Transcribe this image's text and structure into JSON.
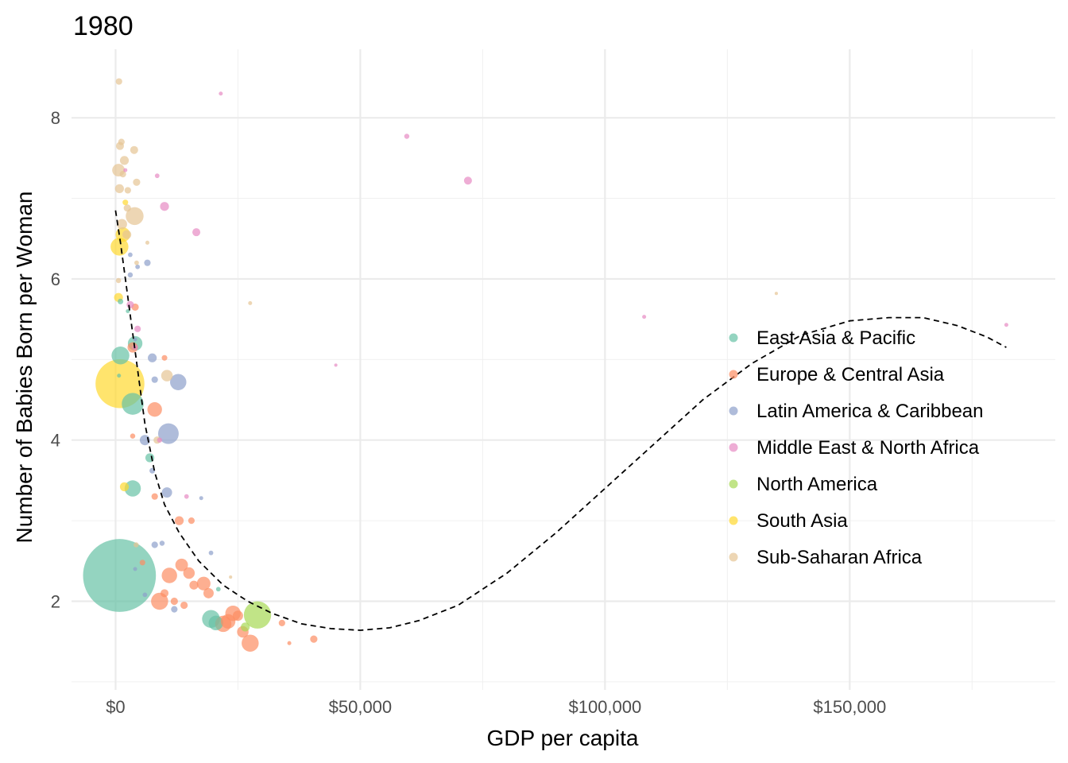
{
  "chart_data": {
    "type": "scatter",
    "title": "1980",
    "xlabel": "GDP per capita",
    "ylabel": "Number of Babies Born per Woman",
    "xlim": [
      -9000,
      192000
    ],
    "ylim": [
      0.9,
      8.85
    ],
    "x_ticks": [
      {
        "value": 0,
        "label": "$0"
      },
      {
        "value": 50000,
        "label": "$50,000"
      },
      {
        "value": 100000,
        "label": "$100,000"
      },
      {
        "value": 150000,
        "label": "$150,000"
      }
    ],
    "y_ticks": [
      {
        "value": 2,
        "label": "2"
      },
      {
        "value": 4,
        "label": "4"
      },
      {
        "value": 6,
        "label": "6"
      },
      {
        "value": 8,
        "label": "8"
      }
    ],
    "grid": true,
    "legend_position": "right",
    "point_opacity": 0.7,
    "colors": {
      "East Asia & Pacific": "#66c2a5",
      "Europe & Central Asia": "#fc8d62",
      "Latin America & Caribbean": "#8da0cb",
      "Middle East & North Africa": "#e78ac3",
      "North America": "#a6d854",
      "South Asia": "#ffd92f",
      "Sub-Saharan Africa": "#e5c494"
    },
    "trend_line": {
      "style": "dashed",
      "points": [
        [
          0,
          6.85
        ],
        [
          1000,
          6.45
        ],
        [
          2000,
          6.0
        ],
        [
          3000,
          5.55
        ],
        [
          4000,
          5.1
        ],
        [
          5000,
          4.65
        ],
        [
          6000,
          4.2
        ],
        [
          8000,
          3.6
        ],
        [
          10000,
          3.2
        ],
        [
          13000,
          2.85
        ],
        [
          17000,
          2.5
        ],
        [
          22000,
          2.2
        ],
        [
          27000,
          2.0
        ],
        [
          32000,
          1.85
        ],
        [
          38000,
          1.72
        ],
        [
          44000,
          1.66
        ],
        [
          50000,
          1.64
        ],
        [
          56000,
          1.67
        ],
        [
          62000,
          1.76
        ],
        [
          70000,
          1.95
        ],
        [
          80000,
          2.35
        ],
        [
          90000,
          2.85
        ],
        [
          100000,
          3.4
        ],
        [
          110000,
          3.95
        ],
        [
          120000,
          4.5
        ],
        [
          130000,
          4.95
        ],
        [
          140000,
          5.3
        ],
        [
          150000,
          5.48
        ],
        [
          158000,
          5.52
        ],
        [
          165000,
          5.52
        ],
        [
          172000,
          5.42
        ],
        [
          178000,
          5.28
        ],
        [
          182000,
          5.15
        ]
      ]
    },
    "series": [
      {
        "name": "East Asia & Pacific",
        "points": [
          {
            "x": 800,
            "y": 2.32,
            "size": 1000
          },
          {
            "x": 1000,
            "y": 5.05,
            "size": 60
          },
          {
            "x": 3500,
            "y": 4.45,
            "size": 90
          },
          {
            "x": 4000,
            "y": 5.2,
            "size": 40
          },
          {
            "x": 3500,
            "y": 3.4,
            "size": 50
          },
          {
            "x": 7000,
            "y": 3.78,
            "size": 15
          },
          {
            "x": 19500,
            "y": 1.78,
            "size": 60
          },
          {
            "x": 20500,
            "y": 1.73,
            "size": 40
          },
          {
            "x": 21000,
            "y": 2.15,
            "size": 4
          },
          {
            "x": 1000,
            "y": 5.72,
            "size": 6
          },
          {
            "x": 700,
            "y": 4.8,
            "size": 3
          },
          {
            "x": 2500,
            "y": 5.6,
            "size": 3
          }
        ]
      },
      {
        "name": "Europe & Central Asia",
        "points": [
          {
            "x": 8000,
            "y": 4.38,
            "size": 40
          },
          {
            "x": 3500,
            "y": 5.15,
            "size": 20
          },
          {
            "x": 4000,
            "y": 5.65,
            "size": 10
          },
          {
            "x": 9000,
            "y": 2.0,
            "size": 55
          },
          {
            "x": 11000,
            "y": 2.32,
            "size": 45
          },
          {
            "x": 13500,
            "y": 2.45,
            "size": 30
          },
          {
            "x": 15000,
            "y": 2.35,
            "size": 25
          },
          {
            "x": 16000,
            "y": 2.2,
            "size": 15
          },
          {
            "x": 18000,
            "y": 2.22,
            "size": 35
          },
          {
            "x": 19000,
            "y": 2.1,
            "size": 20
          },
          {
            "x": 22000,
            "y": 1.72,
            "size": 50
          },
          {
            "x": 23000,
            "y": 1.75,
            "size": 40
          },
          {
            "x": 24000,
            "y": 1.85,
            "size": 45
          },
          {
            "x": 25000,
            "y": 1.82,
            "size": 20
          },
          {
            "x": 26000,
            "y": 1.62,
            "size": 25
          },
          {
            "x": 27500,
            "y": 1.48,
            "size": 55
          },
          {
            "x": 13000,
            "y": 3.0,
            "size": 15
          },
          {
            "x": 15500,
            "y": 3.0,
            "size": 8
          },
          {
            "x": 8000,
            "y": 3.3,
            "size": 8
          },
          {
            "x": 10000,
            "y": 2.1,
            "size": 12
          },
          {
            "x": 12000,
            "y": 2.0,
            "size": 10
          },
          {
            "x": 5500,
            "y": 2.48,
            "size": 6
          },
          {
            "x": 10000,
            "y": 5.02,
            "size": 6
          },
          {
            "x": 34000,
            "y": 1.73,
            "size": 8
          },
          {
            "x": 35500,
            "y": 1.48,
            "size": 3
          },
          {
            "x": 40500,
            "y": 1.53,
            "size": 10
          },
          {
            "x": 3500,
            "y": 4.05,
            "size": 5
          },
          {
            "x": 14000,
            "y": 1.95,
            "size": 10
          }
        ]
      },
      {
        "name": "Latin America & Caribbean",
        "points": [
          {
            "x": 10800,
            "y": 4.08,
            "size": 80
          },
          {
            "x": 12800,
            "y": 4.72,
            "size": 50
          },
          {
            "x": 6000,
            "y": 4.0,
            "size": 20
          },
          {
            "x": 7500,
            "y": 5.02,
            "size": 15
          },
          {
            "x": 10500,
            "y": 3.35,
            "size": 20
          },
          {
            "x": 6500,
            "y": 6.2,
            "size": 8
          },
          {
            "x": 3000,
            "y": 6.05,
            "size": 5
          },
          {
            "x": 8000,
            "y": 4.75,
            "size": 8
          },
          {
            "x": 7500,
            "y": 3.62,
            "size": 6
          },
          {
            "x": 3000,
            "y": 6.3,
            "size": 4
          },
          {
            "x": 4500,
            "y": 6.15,
            "size": 4
          },
          {
            "x": 8000,
            "y": 2.7,
            "size": 8
          },
          {
            "x": 9500,
            "y": 2.72,
            "size": 5
          },
          {
            "x": 12000,
            "y": 1.9,
            "size": 8
          },
          {
            "x": 19500,
            "y": 2.6,
            "size": 4
          },
          {
            "x": 17500,
            "y": 3.28,
            "size": 3
          },
          {
            "x": 6000,
            "y": 2.08,
            "size": 4
          },
          {
            "x": 4000,
            "y": 2.4,
            "size": 3
          },
          {
            "x": 4000,
            "y": 5.25,
            "size": 3
          }
        ]
      },
      {
        "name": "Middle East & North Africa",
        "points": [
          {
            "x": 21500,
            "y": 8.3,
            "size": 3
          },
          {
            "x": 59500,
            "y": 7.77,
            "size": 5
          },
          {
            "x": 72000,
            "y": 7.22,
            "size": 12
          },
          {
            "x": 8500,
            "y": 7.28,
            "size": 4
          },
          {
            "x": 10000,
            "y": 6.9,
            "size": 15
          },
          {
            "x": 16500,
            "y": 6.58,
            "size": 12
          },
          {
            "x": 3000,
            "y": 5.68,
            "size": 10
          },
          {
            "x": 4500,
            "y": 5.38,
            "size": 8
          },
          {
            "x": 4000,
            "y": 5.15,
            "size": 6
          },
          {
            "x": 9000,
            "y": 4.0,
            "size": 5
          },
          {
            "x": 14500,
            "y": 3.3,
            "size": 4
          },
          {
            "x": 108000,
            "y": 5.53,
            "size": 3
          },
          {
            "x": 182000,
            "y": 5.43,
            "size": 3
          },
          {
            "x": 45000,
            "y": 4.93,
            "size": 2
          },
          {
            "x": 2000,
            "y": 7.35,
            "size": 3
          }
        ]
      },
      {
        "name": "North America",
        "points": [
          {
            "x": 29000,
            "y": 1.83,
            "size": 140
          },
          {
            "x": 26500,
            "y": 1.68,
            "size": 15
          }
        ]
      },
      {
        "name": "South Asia",
        "points": [
          {
            "x": 900,
            "y": 4.7,
            "size": 450
          },
          {
            "x": 800,
            "y": 6.4,
            "size": 60
          },
          {
            "x": 1500,
            "y": 6.55,
            "size": 40
          },
          {
            "x": 600,
            "y": 5.77,
            "size": 15
          },
          {
            "x": 1800,
            "y": 3.42,
            "size": 15
          },
          {
            "x": 2000,
            "y": 6.95,
            "size": 6
          }
        ]
      },
      {
        "name": "Sub-Saharan Africa",
        "points": [
          {
            "x": 700,
            "y": 8.45,
            "size": 8
          },
          {
            "x": 900,
            "y": 7.65,
            "size": 12
          },
          {
            "x": 1200,
            "y": 7.7,
            "size": 8
          },
          {
            "x": 3800,
            "y": 7.6,
            "size": 12
          },
          {
            "x": 1800,
            "y": 7.47,
            "size": 15
          },
          {
            "x": 600,
            "y": 7.35,
            "size": 30
          },
          {
            "x": 1500,
            "y": 7.3,
            "size": 8
          },
          {
            "x": 800,
            "y": 7.12,
            "size": 15
          },
          {
            "x": 2500,
            "y": 7.1,
            "size": 8
          },
          {
            "x": 4300,
            "y": 7.2,
            "size": 10
          },
          {
            "x": 3900,
            "y": 6.78,
            "size": 60
          },
          {
            "x": 1300,
            "y": 6.68,
            "size": 20
          },
          {
            "x": 2300,
            "y": 6.55,
            "size": 15
          },
          {
            "x": 6500,
            "y": 6.45,
            "size": 3
          },
          {
            "x": 4300,
            "y": 6.2,
            "size": 4
          },
          {
            "x": 600,
            "y": 5.98,
            "size": 5
          },
          {
            "x": 10500,
            "y": 4.8,
            "size": 25
          },
          {
            "x": 27500,
            "y": 5.7,
            "size": 3
          },
          {
            "x": 135000,
            "y": 5.82,
            "size": 2
          },
          {
            "x": 8500,
            "y": 4.0,
            "size": 10
          },
          {
            "x": 4200,
            "y": 2.7,
            "size": 5
          },
          {
            "x": 23500,
            "y": 2.3,
            "size": 2
          },
          {
            "x": 2400,
            "y": 6.88,
            "size": 10
          }
        ]
      }
    ]
  }
}
